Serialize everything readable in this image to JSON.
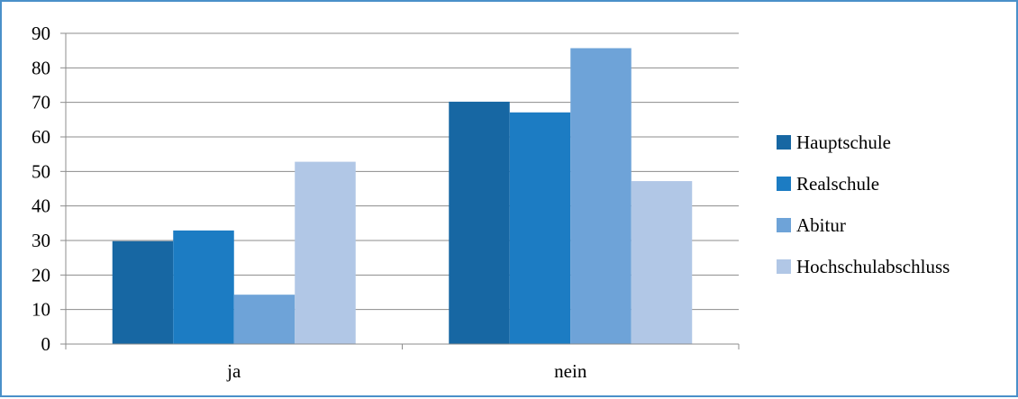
{
  "chart_data": {
    "type": "bar",
    "categories": [
      "ja",
      "nein"
    ],
    "series": [
      {
        "name": "Hauptschule",
        "color": "#1767a3",
        "values": [
          29.8,
          70.2
        ]
      },
      {
        "name": "Realschule",
        "color": "#1c7cc3",
        "values": [
          32.9,
          67.1
        ]
      },
      {
        "name": "Abitur",
        "color": "#6ea3d8",
        "values": [
          14.3,
          85.7
        ]
      },
      {
        "name": "Hochschulabschluss",
        "color": "#b1c7e6",
        "values": [
          52.8,
          47.2
        ]
      }
    ],
    "title": "",
    "xlabel": "",
    "ylabel": "",
    "ylim": [
      0,
      90
    ],
    "yticks": [
      "0",
      "10",
      "20",
      "30",
      "40",
      "50",
      "60",
      "70",
      "80",
      "90"
    ],
    "grid": true,
    "legend_position": "right"
  }
}
